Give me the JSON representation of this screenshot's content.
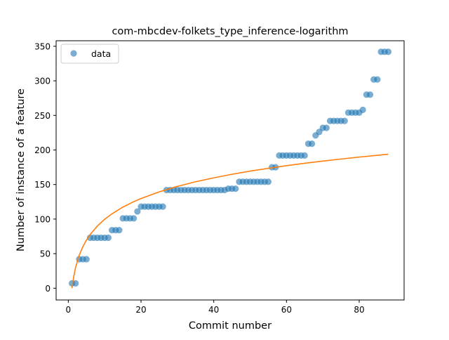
{
  "chart_data": {
    "type": "scatter",
    "title": "com-mbcdev-folkets_type_inference-logarithm",
    "xlabel": "Commit number",
    "ylabel": "Number of instance of a feature",
    "xlim": [
      -3.35,
      92.35
    ],
    "ylim": [
      -17,
      358
    ],
    "x_ticks": [
      0,
      20,
      40,
      60,
      80
    ],
    "y_ticks": [
      0,
      50,
      100,
      150,
      200,
      250,
      300,
      350
    ],
    "legend": {
      "position": "top-left",
      "entries": [
        "data"
      ]
    },
    "grid": false,
    "series": [
      {
        "name": "data",
        "kind": "scatter",
        "color": "#1f77b4",
        "x": [
          1,
          2,
          3,
          4,
          5,
          6,
          7,
          8,
          9,
          10,
          11,
          12,
          13,
          14,
          15,
          16,
          17,
          18,
          19,
          20,
          21,
          22,
          23,
          24,
          25,
          26,
          27,
          28,
          29,
          30,
          31,
          32,
          33,
          34,
          35,
          36,
          37,
          38,
          39,
          40,
          41,
          42,
          43,
          44,
          45,
          46,
          47,
          48,
          49,
          50,
          51,
          52,
          53,
          54,
          55,
          56,
          57,
          58,
          59,
          60,
          61,
          62,
          63,
          64,
          65,
          66,
          67,
          68,
          69,
          70,
          71,
          72,
          73,
          74,
          75,
          76,
          77,
          78,
          79,
          80,
          81,
          82,
          83,
          84,
          85,
          86,
          87,
          88
        ],
        "y": [
          7,
          7,
          42,
          42,
          42,
          73,
          73,
          73,
          73,
          73,
          73,
          84,
          84,
          84,
          101,
          101,
          101,
          101,
          111,
          118,
          118,
          118,
          118,
          118,
          118,
          118,
          142,
          142,
          142,
          142,
          142,
          142,
          142,
          142,
          142,
          142,
          142,
          142,
          142,
          142,
          142,
          142,
          142,
          144,
          144,
          144,
          154,
          154,
          154,
          154,
          154,
          154,
          154,
          154,
          154,
          175,
          175,
          192,
          192,
          192,
          192,
          192,
          192,
          192,
          192,
          209,
          209,
          221,
          226,
          232,
          232,
          242,
          242,
          242,
          242,
          242,
          254,
          254,
          254,
          254,
          258,
          280,
          280,
          302,
          302,
          342,
          342,
          342
        ]
      },
      {
        "name": "",
        "kind": "line",
        "color": "#ff7f0e",
        "x": [
          1,
          1.5,
          2,
          3,
          4,
          5,
          6,
          8,
          10,
          12,
          15,
          18,
          20,
          25,
          30,
          35,
          40,
          45,
          50,
          55,
          60,
          65,
          70,
          75,
          80,
          85,
          88
        ],
        "y": [
          0,
          17.0,
          30.0,
          47.6,
          60.0,
          69.7,
          77.6,
          90.0,
          99.7,
          107.6,
          117.3,
          125.2,
          129.7,
          139.4,
          147.3,
          154.0,
          159.7,
          164.8,
          169.4,
          173.4,
          177.3,
          180.7,
          183.9,
          186.9,
          189.7,
          192.3,
          193.8
        ]
      }
    ]
  }
}
